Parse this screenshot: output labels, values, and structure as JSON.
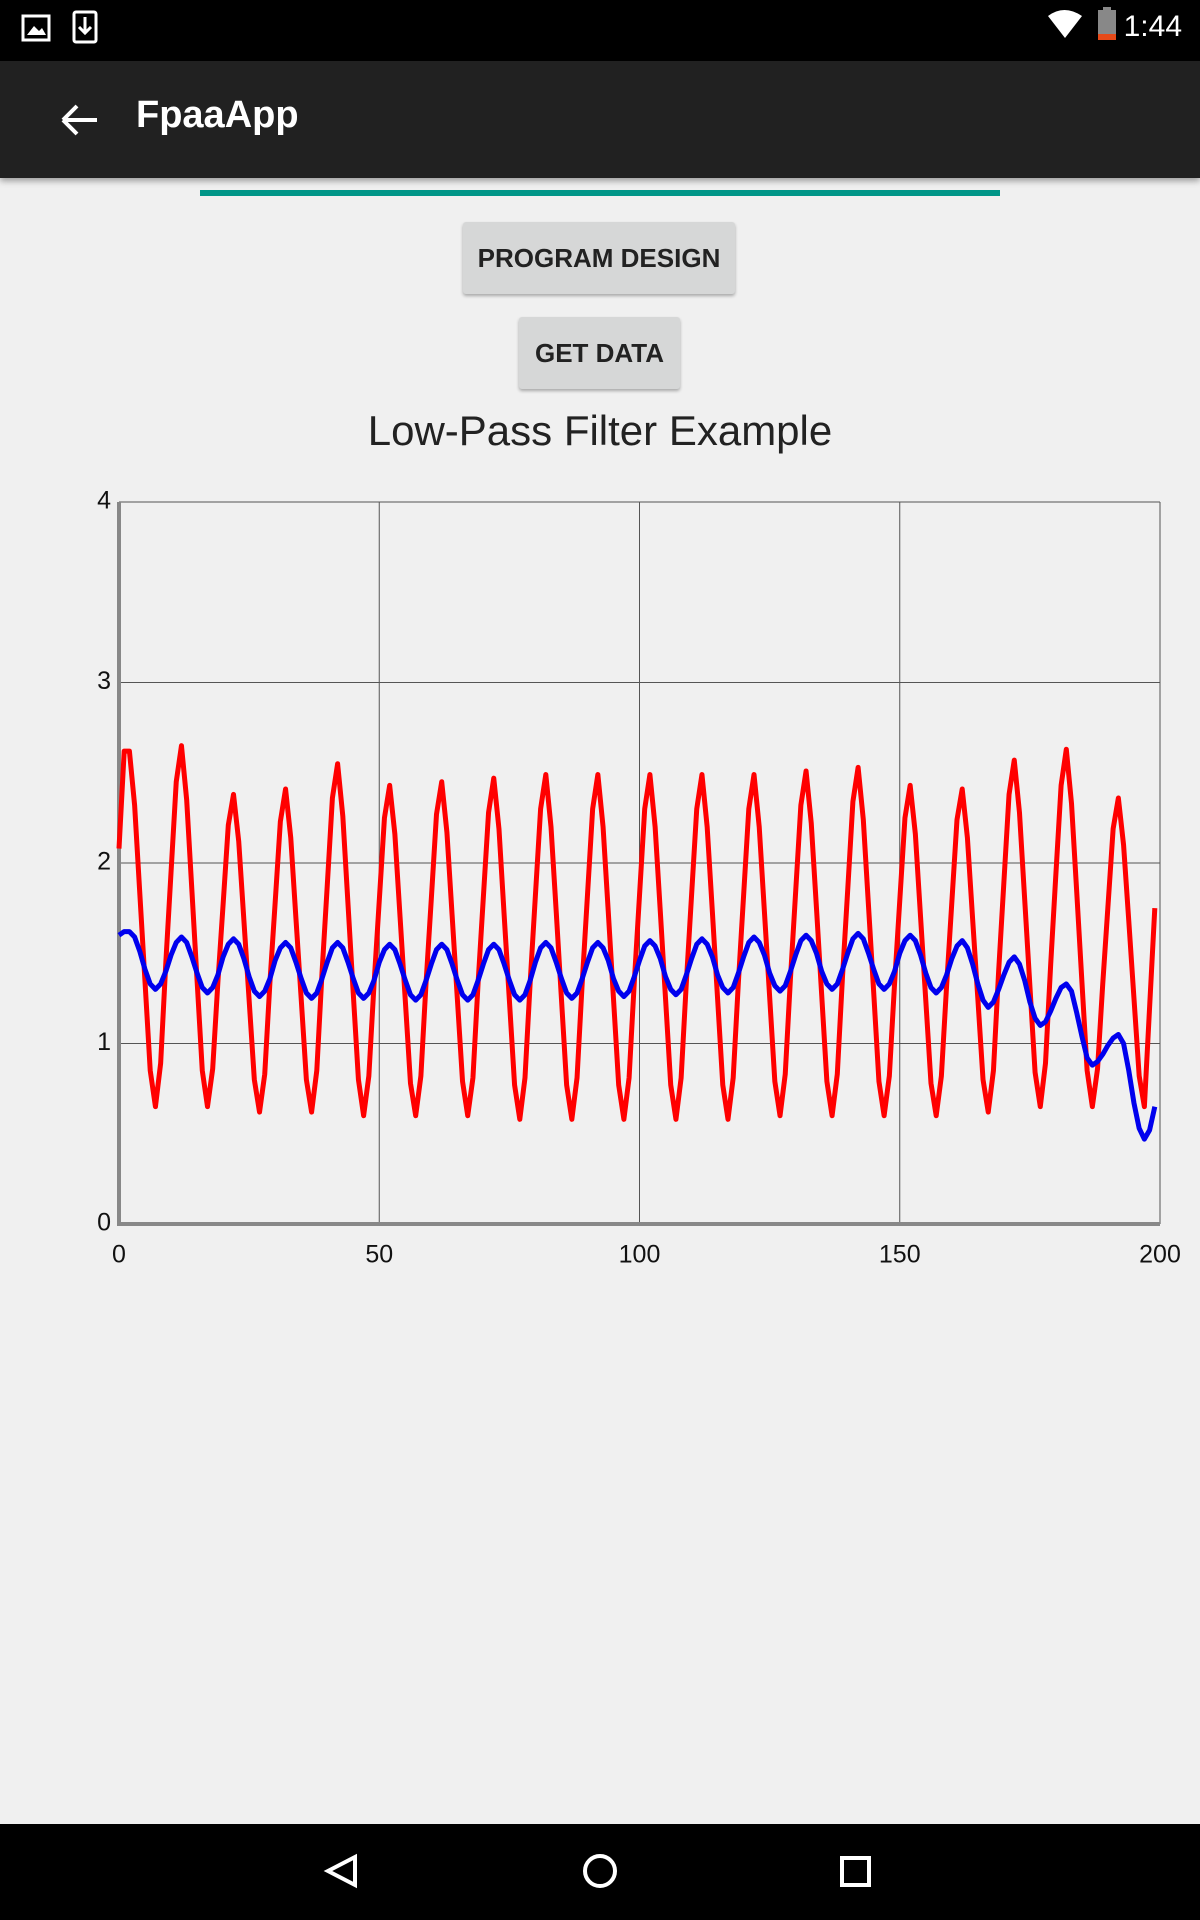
{
  "status_bar": {
    "time": "1:44"
  },
  "app_bar": {
    "title": "FpaaApp"
  },
  "buttons": [
    "PROGRAM DESIGN",
    "GET DATA"
  ],
  "chart_data": {
    "type": "line",
    "title": "Low-Pass Filter Example",
    "x": [
      0,
      1,
      2,
      3,
      4,
      5,
      6,
      7,
      8,
      9,
      10,
      11,
      12,
      13,
      14,
      15,
      16,
      17,
      18,
      19,
      20,
      21,
      22,
      23,
      24,
      25,
      26,
      27,
      28,
      29,
      30,
      31,
      32,
      33,
      34,
      35,
      36,
      37,
      38,
      39,
      40,
      41,
      42,
      43,
      44,
      45,
      46,
      47,
      48,
      49,
      50,
      51,
      52,
      53,
      54,
      55,
      56,
      57,
      58,
      59,
      60,
      61,
      62,
      63,
      64,
      65,
      66,
      67,
      68,
      69,
      70,
      71,
      72,
      73,
      74,
      75,
      76,
      77,
      78,
      79,
      80,
      81,
      82,
      83,
      84,
      85,
      86,
      87,
      88,
      89,
      90,
      91,
      92,
      93,
      94,
      95,
      96,
      97,
      98,
      99,
      100,
      101,
      102,
      103,
      104,
      105,
      106,
      107,
      108,
      109,
      110,
      111,
      112,
      113,
      114,
      115,
      116,
      117,
      118,
      119,
      120,
      121,
      122,
      123,
      124,
      125,
      126,
      127,
      128,
      129,
      130,
      131,
      132,
      133,
      134,
      135,
      136,
      137,
      138,
      139,
      140,
      141,
      142,
      143,
      144,
      145,
      146,
      147,
      148,
      149,
      150,
      151,
      152,
      153,
      154,
      155,
      156,
      157,
      158,
      159,
      160,
      161,
      162,
      163,
      164,
      165,
      166,
      167,
      168,
      169,
      170,
      171,
      172,
      173,
      174,
      175,
      176,
      177,
      178,
      179,
      180,
      181,
      182,
      183,
      184,
      185,
      186,
      187,
      188,
      189,
      190,
      191,
      192,
      193,
      194,
      195,
      196,
      197,
      198,
      199
    ],
    "series": [
      {
        "color": "#ff0000",
        "values": [
          2.08,
          2.62,
          2.62,
          2.32,
          1.83,
          1.34,
          0.85,
          0.65,
          0.89,
          1.45,
          1.95,
          2.45,
          2.65,
          2.35,
          1.85,
          1.35,
          0.85,
          0.65,
          0.86,
          1.34,
          1.77,
          2.21,
          2.38,
          2.12,
          1.68,
          1.24,
          0.8,
          0.62,
          0.83,
          1.34,
          1.78,
          2.23,
          2.41,
          2.14,
          1.69,
          1.25,
          0.8,
          0.62,
          0.85,
          1.39,
          1.87,
          2.36,
          2.55,
          2.26,
          1.77,
          1.28,
          0.8,
          0.6,
          0.82,
          1.33,
          1.79,
          2.25,
          2.43,
          2.16,
          1.7,
          1.24,
          0.78,
          0.6,
          0.82,
          1.34,
          1.8,
          2.27,
          2.45,
          2.17,
          1.71,
          1.25,
          0.79,
          0.6,
          0.81,
          1.34,
          1.81,
          2.28,
          2.47,
          2.19,
          1.71,
          1.24,
          0.77,
          0.58,
          0.81,
          1.34,
          1.82,
          2.3,
          2.49,
          2.2,
          1.73,
          1.25,
          0.77,
          0.58,
          0.81,
          1.34,
          1.82,
          2.3,
          2.49,
          2.2,
          1.73,
          1.25,
          0.77,
          0.58,
          0.81,
          1.34,
          1.82,
          2.3,
          2.49,
          2.2,
          1.73,
          1.25,
          0.77,
          0.58,
          0.81,
          1.34,
          1.82,
          2.3,
          2.49,
          2.2,
          1.73,
          1.25,
          0.77,
          0.58,
          0.81,
          1.34,
          1.82,
          2.3,
          2.49,
          2.2,
          1.73,
          1.26,
          0.79,
          0.6,
          0.83,
          1.36,
          1.84,
          2.32,
          2.51,
          2.22,
          1.75,
          1.27,
          0.79,
          0.6,
          0.83,
          1.37,
          1.85,
          2.34,
          2.53,
          2.24,
          1.76,
          1.28,
          0.79,
          0.6,
          0.82,
          1.33,
          1.79,
          2.25,
          2.43,
          2.16,
          1.7,
          1.24,
          0.78,
          0.6,
          0.82,
          1.32,
          1.78,
          2.24,
          2.41,
          2.14,
          1.69,
          1.25,
          0.8,
          0.62,
          0.85,
          1.4,
          1.89,
          2.38,
          2.57,
          2.28,
          1.8,
          1.32,
          0.84,
          0.65,
          0.89,
          1.44,
          1.94,
          2.43,
          2.63,
          2.33,
          1.84,
          1.34,
          0.85,
          0.65,
          0.86,
          1.33,
          1.76,
          2.19,
          2.36,
          2.1,
          1.68,
          1.25,
          0.82,
          0.65,
          1.2,
          1.75
        ]
      },
      {
        "color": "#0000ee",
        "values": [
          1.6,
          1.62,
          1.62,
          1.59,
          1.51,
          1.41,
          1.33,
          1.3,
          1.33,
          1.4,
          1.49,
          1.56,
          1.59,
          1.56,
          1.48,
          1.39,
          1.31,
          1.28,
          1.31,
          1.38,
          1.48,
          1.55,
          1.58,
          1.55,
          1.47,
          1.37,
          1.29,
          1.26,
          1.29,
          1.36,
          1.46,
          1.53,
          1.56,
          1.53,
          1.45,
          1.36,
          1.28,
          1.25,
          1.28,
          1.36,
          1.45,
          1.53,
          1.56,
          1.53,
          1.45,
          1.36,
          1.28,
          1.25,
          1.28,
          1.35,
          1.45,
          1.52,
          1.55,
          1.52,
          1.44,
          1.35,
          1.27,
          1.24,
          1.27,
          1.35,
          1.44,
          1.52,
          1.55,
          1.52,
          1.44,
          1.35,
          1.27,
          1.24,
          1.27,
          1.35,
          1.44,
          1.52,
          1.55,
          1.52,
          1.44,
          1.35,
          1.27,
          1.24,
          1.27,
          1.35,
          1.45,
          1.53,
          1.56,
          1.53,
          1.45,
          1.36,
          1.28,
          1.25,
          1.28,
          1.36,
          1.45,
          1.53,
          1.56,
          1.53,
          1.46,
          1.36,
          1.29,
          1.26,
          1.29,
          1.37,
          1.46,
          1.54,
          1.57,
          1.54,
          1.47,
          1.37,
          1.3,
          1.27,
          1.3,
          1.38,
          1.47,
          1.55,
          1.58,
          1.55,
          1.48,
          1.38,
          1.31,
          1.28,
          1.31,
          1.39,
          1.48,
          1.56,
          1.59,
          1.56,
          1.49,
          1.39,
          1.32,
          1.29,
          1.32,
          1.4,
          1.49,
          1.57,
          1.6,
          1.57,
          1.5,
          1.4,
          1.33,
          1.3,
          1.33,
          1.41,
          1.5,
          1.58,
          1.61,
          1.58,
          1.5,
          1.41,
          1.33,
          1.3,
          1.33,
          1.4,
          1.5,
          1.57,
          1.6,
          1.57,
          1.49,
          1.39,
          1.31,
          1.28,
          1.31,
          1.38,
          1.47,
          1.54,
          1.57,
          1.53,
          1.44,
          1.33,
          1.24,
          1.2,
          1.23,
          1.3,
          1.38,
          1.45,
          1.48,
          1.44,
          1.35,
          1.23,
          1.14,
          1.1,
          1.12,
          1.18,
          1.25,
          1.31,
          1.33,
          1.29,
          1.17,
          1.04,
          0.92,
          0.88,
          0.9,
          0.94,
          0.99,
          1.03,
          1.05,
          1.0,
          0.85,
          0.67,
          0.53,
          0.47,
          0.52,
          0.65
        ]
      }
    ],
    "xlim": [
      0,
      200
    ],
    "ylim": [
      0,
      4
    ],
    "xticks": [
      0,
      50,
      100,
      150,
      200
    ],
    "yticks": [
      0,
      1,
      2,
      3,
      4
    ],
    "grid": true
  }
}
